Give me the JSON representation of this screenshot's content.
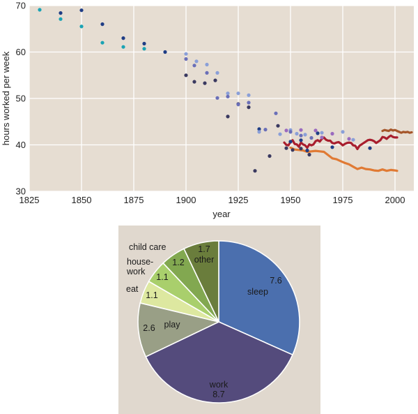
{
  "chart_data": [
    {
      "type": "scatter",
      "xlabel": "year",
      "ylabel": "hours worked per week",
      "xlim": [
        1825,
        2009
      ],
      "ylim": [
        30,
        70
      ],
      "xticks": [
        "1825",
        "1850",
        "1875",
        "1900",
        "1925",
        "1950",
        "1975",
        "2000"
      ],
      "yticks": [
        "30",
        "40",
        "50",
        "60",
        "70"
      ],
      "grid": true,
      "colors": {
        "background": "#e6ddd2",
        "grid": "#ffffff"
      },
      "series": [
        {
          "color": "#1aa3b4",
          "points": [
            [
              1830,
              69.1
            ],
            [
              1840,
              67.1
            ],
            [
              1850,
              65.5
            ],
            [
              1860,
              62.0
            ],
            [
              1870,
              61.1
            ],
            [
              1880,
              60.7
            ]
          ]
        },
        {
          "color": "#1f3d85",
          "points": [
            [
              1840,
              68.4
            ],
            [
              1850,
              69.0
            ],
            [
              1860,
              66.0
            ],
            [
              1870,
              63.0
            ],
            [
              1880,
              61.8
            ],
            [
              1890,
              60.0
            ],
            [
              1935,
              43.4
            ],
            [
              1950,
              40.7
            ],
            [
              1955,
              41.0
            ],
            [
              1958,
              38.8
            ],
            [
              1963,
              42.5
            ],
            [
              1970,
              39.5
            ],
            [
              1988,
              39.3
            ]
          ]
        },
        {
          "color": "#8a9fd8",
          "points": [
            [
              1900,
              59.6
            ],
            [
              1905,
              58.0
            ],
            [
              1910,
              57.3
            ],
            [
              1915,
              55.5
            ],
            [
              1920,
              51.1
            ],
            [
              1925,
              51.1
            ],
            [
              1930,
              50.7
            ],
            [
              1935,
              42.8
            ],
            [
              1945,
              42.3
            ],
            [
              1950,
              43.2
            ],
            [
              1953,
              42.4
            ],
            [
              1957,
              42.2
            ],
            [
              1965,
              42.6
            ],
            [
              1975,
              42.8
            ],
            [
              1980,
              41.1
            ]
          ]
        },
        {
          "color": "#3a3960",
          "points": [
            [
              1900,
              55.0
            ],
            [
              1904,
              53.6
            ],
            [
              1909,
              53.3
            ],
            [
              1914,
              53.9
            ],
            [
              1920,
              46.1
            ],
            [
              1925,
              48.8
            ],
            [
              1930,
              48.1
            ],
            [
              1933,
              34.4
            ],
            [
              1940,
              37.6
            ],
            [
              1944,
              44.1
            ],
            [
              1948,
              39.3
            ],
            [
              1951,
              38.9
            ],
            [
              1955,
              39.2
            ],
            [
              1959,
              37.9
            ]
          ]
        },
        {
          "color": "#6a6fb8",
          "points": [
            [
              1900,
              58.5
            ],
            [
              1904,
              57.1
            ],
            [
              1910,
              55.5
            ],
            [
              1915,
              50.1
            ],
            [
              1920,
              50.4
            ],
            [
              1925,
              48.7
            ],
            [
              1930,
              49.1
            ],
            [
              1938,
              43.3
            ],
            [
              1943,
              46.8
            ],
            [
              1950,
              42.8
            ],
            [
              1955,
              42.0
            ],
            [
              1960,
              41.5
            ]
          ]
        },
        {
          "color": "#9a6abf",
          "points": [
            [
              1948,
              43.1
            ],
            [
              1955,
              43.2
            ],
            [
              1962,
              43.1
            ],
            [
              1965,
              41.6
            ],
            [
              1970,
              42.4
            ],
            [
              1978,
              41.3
            ]
          ]
        }
      ],
      "lines": [
        {
          "color": "#a81e2e",
          "points": [
            [
              1947,
              40.5
            ],
            [
              1948,
              40.0
            ],
            [
              1949,
              39.9
            ],
            [
              1950,
              40.6
            ],
            [
              1951,
              41.0
            ],
            [
              1952,
              40.2
            ],
            [
              1953,
              40.1
            ],
            [
              1954,
              39.6
            ],
            [
              1955,
              40.5
            ],
            [
              1956,
              40.1
            ],
            [
              1957,
              39.9
            ],
            [
              1958,
              39.4
            ],
            [
              1959,
              40.1
            ],
            [
              1960,
              39.9
            ],
            [
              1961,
              40.1
            ],
            [
              1962,
              40.8
            ],
            [
              1963,
              41.0
            ],
            [
              1964,
              40.7
            ],
            [
              1965,
              41.3
            ],
            [
              1966,
              41.6
            ],
            [
              1967,
              41.1
            ],
            [
              1968,
              40.9
            ],
            [
              1969,
              40.9
            ],
            [
              1970,
              40.4
            ],
            [
              1971,
              40.3
            ],
            [
              1972,
              40.5
            ],
            [
              1973,
              40.6
            ],
            [
              1974,
              40.3
            ],
            [
              1975,
              39.9
            ],
            [
              1976,
              40.2
            ],
            [
              1977,
              40.4
            ],
            [
              1978,
              40.5
            ],
            [
              1979,
              40.4
            ],
            [
              1980,
              39.9
            ],
            [
              1981,
              39.8
            ],
            [
              1982,
              39.1
            ],
            [
              1983,
              39.8
            ],
            [
              1984,
              40.1
            ],
            [
              1985,
              40.4
            ],
            [
              1986,
              40.7
            ],
            [
              1987,
              41.0
            ],
            [
              1988,
              41.1
            ],
            [
              1989,
              41.0
            ],
            [
              1990,
              40.8
            ],
            [
              1991,
              40.4
            ],
            [
              1992,
              40.7
            ],
            [
              1993,
              41.0
            ],
            [
              1994,
              41.7
            ],
            [
              1995,
              41.6
            ],
            [
              1996,
              41.3
            ],
            [
              1997,
              41.7
            ],
            [
              1998,
              42.0
            ],
            [
              1999,
              41.7
            ],
            [
              2000,
              41.6
            ],
            [
              2001,
              41.6
            ]
          ]
        },
        {
          "color": "#e07a34",
          "points": [
            [
              1950,
              39.4
            ],
            [
              1952,
              39.0
            ],
            [
              1954,
              38.9
            ],
            [
              1956,
              38.8
            ],
            [
              1958,
              38.5
            ],
            [
              1960,
              38.6
            ],
            [
              1962,
              38.7
            ],
            [
              1964,
              38.6
            ],
            [
              1966,
              38.5
            ],
            [
              1968,
              37.8
            ],
            [
              1970,
              37.1
            ],
            [
              1972,
              36.9
            ],
            [
              1974,
              36.5
            ],
            [
              1976,
              36.1
            ],
            [
              1978,
              35.8
            ],
            [
              1980,
              35.3
            ],
            [
              1982,
              34.8
            ],
            [
              1984,
              35.1
            ],
            [
              1986,
              34.8
            ],
            [
              1988,
              34.7
            ],
            [
              1990,
              34.5
            ],
            [
              1992,
              34.4
            ],
            [
              1994,
              34.7
            ],
            [
              1996,
              34.4
            ],
            [
              1998,
              34.6
            ],
            [
              2000,
              34.5
            ],
            [
              2001,
              34.4
            ]
          ]
        },
        {
          "color": "#a5562a",
          "points": [
            [
              1994,
              43.0
            ],
            [
              1995,
              43.2
            ],
            [
              1996,
              43.1
            ],
            [
              1997,
              43.0
            ],
            [
              1998,
              43.3
            ],
            [
              1999,
              43.1
            ],
            [
              2000,
              43.2
            ],
            [
              2001,
              43.0
            ],
            [
              2002,
              42.8
            ],
            [
              2003,
              42.6
            ],
            [
              2004,
              42.8
            ],
            [
              2005,
              42.7
            ],
            [
              2006,
              42.8
            ],
            [
              2007,
              42.6
            ],
            [
              2008,
              42.7
            ]
          ]
        }
      ]
    },
    {
      "type": "pie",
      "background": "#e0d8ce",
      "slices": [
        {
          "value": 7.6,
          "label": "sleep",
          "value_label": "7.6",
          "color": "#4b6fae"
        },
        {
          "value": 8.7,
          "label": "work",
          "value_label": "8.7",
          "color": "#544b7c"
        },
        {
          "value": 2.6,
          "label": "play",
          "value_label": "2.6",
          "color": "#999f86"
        },
        {
          "value": 1.1,
          "label": "eat",
          "value_label": "1.1",
          "color": "#dde8a0"
        },
        {
          "value": 1.1,
          "label": "house-\nwork",
          "value_label": "1.1",
          "color": "#a9cf6c"
        },
        {
          "value": 1.2,
          "label": "child care",
          "value_label": "1.2",
          "color": "#82a850"
        },
        {
          "value": 1.7,
          "label": "other",
          "value_label": "1.7",
          "color": "#6a7d3c"
        }
      ]
    }
  ]
}
